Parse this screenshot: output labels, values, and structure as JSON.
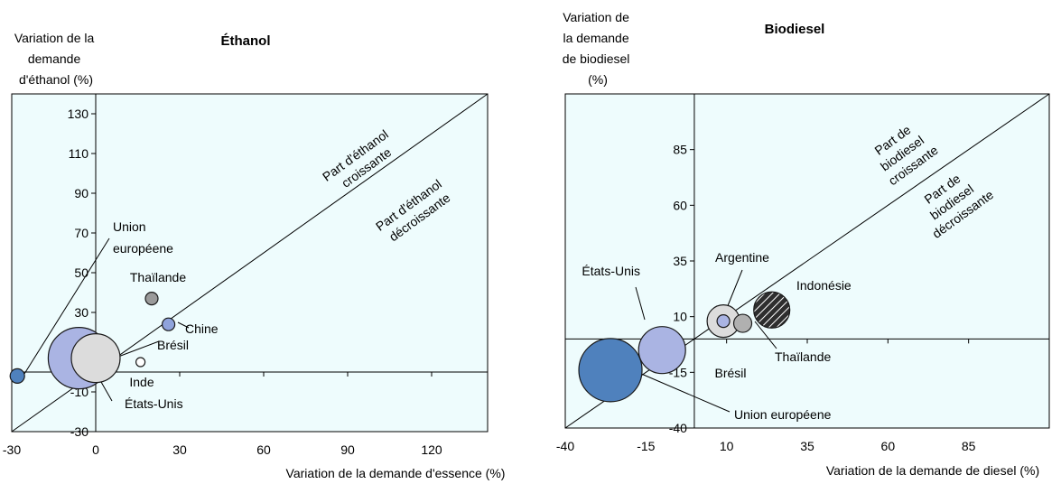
{
  "chart_data": [
    {
      "type": "scatter",
      "title": "Éthanol",
      "ylabel_lines": [
        "Variation de la",
        "demande",
        "d'éthanol (%)"
      ],
      "xlabel": "Variation de la demande d'essence (%)",
      "xlim": [
        -30,
        140
      ],
      "ylim": [
        -30,
        140
      ],
      "xticks": [
        -30,
        0,
        30,
        60,
        90,
        120
      ],
      "yticks": [
        -30,
        -10,
        10,
        30,
        50,
        70,
        90,
        110,
        130
      ],
      "diagonal_labels": {
        "above": [
          "Part d'éthanol",
          "croissante"
        ],
        "below": [
          "Part d'éthanol",
          "décroissante"
        ]
      },
      "points": [
        {
          "name": "États-Unis",
          "x": -6,
          "y": 7,
          "size": 34,
          "color": "#aab4e3",
          "label": "États-Unis"
        },
        {
          "name": "Brésil",
          "x": 0,
          "y": 7,
          "size": 27,
          "color": "#dcdcdc",
          "label": "Brésil"
        },
        {
          "name": "Union européene",
          "x": -28,
          "y": -2,
          "size": 8,
          "color": "#4f81bd",
          "label": "Union\neuropéene"
        },
        {
          "name": "Thaïlande",
          "x": 20,
          "y": 37,
          "size": 7,
          "color": "#9a9a9a",
          "label": "Thaïlande"
        },
        {
          "name": "Chine",
          "x": 26,
          "y": 24,
          "size": 7,
          "color": "#8fa3dc",
          "label": "Chine"
        },
        {
          "name": "Inde",
          "x": 16,
          "y": 5,
          "size": 5,
          "color": "#ffffff",
          "label": "Inde"
        }
      ]
    },
    {
      "type": "scatter",
      "title": "Biodiesel",
      "ylabel_lines": [
        "Variation de",
        "la demande",
        "de biodiesel",
        "(%)"
      ],
      "xlabel": "Variation de la demande de diesel (%)",
      "xlim": [
        -40,
        110
      ],
      "ylim": [
        -40,
        110
      ],
      "xticks": [
        -40,
        -15,
        10,
        35,
        60,
        85
      ],
      "yticks": [
        -40,
        -15,
        10,
        35,
        60,
        85
      ],
      "diagonal_labels": {
        "above": [
          "Part de",
          "biodiesel",
          "croissante"
        ],
        "below": [
          "Part de",
          "biodiesel",
          "décroissante"
        ]
      },
      "points": [
        {
          "name": "Union européene",
          "x": -26,
          "y": -14,
          "size": 35,
          "color": "#4f81bd",
          "label": "Union européene"
        },
        {
          "name": "États-Unis",
          "x": -10,
          "y": -5,
          "size": 26,
          "color": "#aab4e3",
          "label": "États-Unis"
        },
        {
          "name": "Brésil",
          "x": 9,
          "y": 8,
          "size": 18,
          "color": "#dcdcdc",
          "label": "Brésil"
        },
        {
          "name": "Argentine",
          "x": 9,
          "y": 8,
          "size": 7,
          "color": "#aab4e3",
          "label": "Argentine"
        },
        {
          "name": "Thaïlande",
          "x": 15,
          "y": 7,
          "size": 10,
          "color": "#b0b0b0",
          "label": "Thaïlande"
        },
        {
          "name": "Indonésie",
          "x": 24,
          "y": 13,
          "size": 20,
          "color": "#303030",
          "label": "Indonésie"
        }
      ]
    }
  ]
}
